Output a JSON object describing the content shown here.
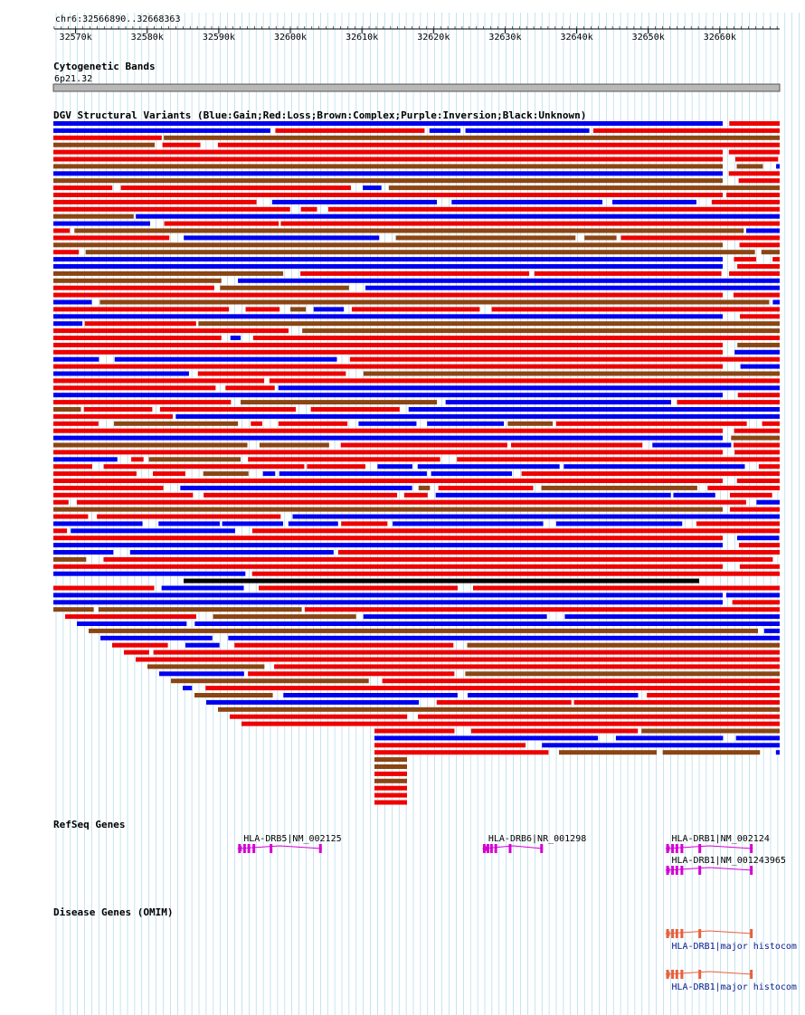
{
  "ruler": {
    "range_label": "chr6:32566890..32668363",
    "start": 32566890,
    "end": 32668363,
    "ticks": [
      {
        "pos": 32570000,
        "label": "32570k"
      },
      {
        "pos": 32580000,
        "label": "32580k"
      },
      {
        "pos": 32590000,
        "label": "32590k"
      },
      {
        "pos": 32600000,
        "label": "32600k"
      },
      {
        "pos": 32610000,
        "label": "32610k"
      },
      {
        "pos": 32620000,
        "label": "32620k"
      },
      {
        "pos": 32630000,
        "label": "32630k"
      },
      {
        "pos": 32640000,
        "label": "32640k"
      },
      {
        "pos": 32650000,
        "label": "32650k"
      },
      {
        "pos": 32660000,
        "label": "32660k"
      }
    ]
  },
  "tracks": {
    "cytoband": {
      "title": "Cytogenetic Bands",
      "band_label": "6p21.32"
    },
    "dgv": {
      "title": "DGV Structural Variants (Blue:Gain;Red:Loss;Brown:Complex;Purple:Inversion;Black:Unknown)"
    },
    "refseq": {
      "title": "RefSeq Genes"
    },
    "omim": {
      "title": "Disease Genes (OMIM)"
    }
  },
  "colors": {
    "gain": "#0000ee",
    "loss": "#ee0000",
    "complex": "#8b4513",
    "unknown": "#000000",
    "grid": "#9fd3e6",
    "refseq": "#d400d4",
    "omim": "#e8603c",
    "omim_label": "#0b1b8c"
  },
  "refseq_genes": [
    {
      "label": "HLA-DRB5|NM_002125",
      "start": 32592700,
      "end": 32604400,
      "exons": [
        32592900,
        32593600,
        32594200,
        32594900,
        32597300,
        32604200
      ]
    },
    {
      "label": "HLA-DRB6|NR_001298",
      "start": 32626900,
      "end": 32635300,
      "exons": [
        32627100,
        32627600,
        32628100,
        32628700,
        32630700,
        32635100
      ]
    },
    {
      "label": "HLA-DRB1|NM_002124",
      "start": 32652500,
      "end": 32664600,
      "exons": [
        32652700,
        32653400,
        32654000,
        32654700,
        32657200,
        32664400
      ]
    },
    {
      "label": "HLA-DRB1|NM_001243965",
      "start": 32652500,
      "end": 32664600,
      "exons": [
        32652700,
        32653400,
        32654000,
        32654700,
        32657200,
        32664400
      ]
    }
  ],
  "omim_genes": [
    {
      "label": "HLA-DRB1|major histocom",
      "start": 32652500,
      "end": 32664600,
      "exons": [
        32652700,
        32653400,
        32654000,
        32654700,
        32657200,
        32664400
      ]
    },
    {
      "label": "HLA-DRB1|major histocom",
      "start": 32652500,
      "end": 32664600,
      "exons": [
        32652700,
        32653400,
        32654000,
        32654700,
        32657200,
        32664400
      ]
    }
  ]
}
